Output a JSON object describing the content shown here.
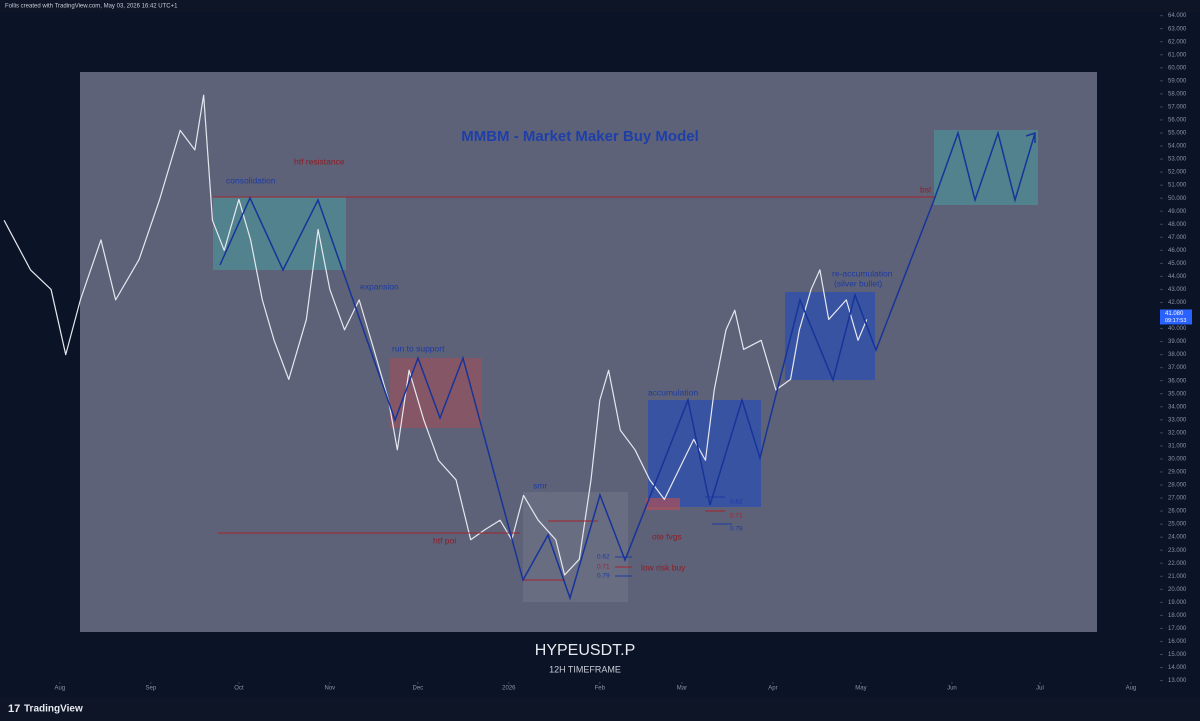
{
  "header": {
    "text": "Follis created with TradingView.com, May 03, 2026 16:42 UTC+1"
  },
  "footer": {
    "brand": "TradingView"
  },
  "chart_data": {
    "type": "line",
    "title": "MMBM - Market Maker Buy Model",
    "symbol": "HYPEUSDT.P",
    "timeframe": "12H TIMEFRAME",
    "color": "#e6e8ef",
    "x": [
      -19,
      -10,
      -3,
      2,
      7,
      14,
      19,
      27,
      34,
      41,
      46,
      49,
      52,
      56,
      61,
      65,
      69,
      73,
      78,
      84,
      88,
      92,
      97,
      102,
      107,
      112,
      115,
      119,
      124,
      129,
      135,
      140,
      145,
      150,
      154,
      158,
      163,
      169,
      172,
      177,
      181,
      184,
      187,
      191,
      196,
      201,
      206,
      211,
      216,
      220,
      223,
      227,
      230,
      233,
      239,
      244,
      249,
      252,
      256,
      259,
      262,
      268,
      272,
      275
    ],
    "values": [
      48.3,
      44.5,
      43,
      38,
      42.2,
      46.8,
      42.2,
      45.3,
      49.9,
      55.2,
      53.7,
      57.9,
      48.3,
      46,
      49.9,
      46.8,
      42.2,
      39.1,
      36.1,
      40.7,
      47.6,
      43,
      39.9,
      42.2,
      38.4,
      34.5,
      30.7,
      36.8,
      33,
      29.9,
      28.4,
      23.8,
      24.6,
      25.3,
      23.8,
      27.2,
      25.3,
      23.8,
      21.1,
      22.3,
      28.4,
      34.5,
      36.8,
      32.2,
      30.7,
      28.4,
      26.9,
      29.2,
      31.5,
      29.9,
      35.3,
      39.9,
      41.4,
      38.4,
      39.1,
      35.3,
      36.1,
      39.9,
      43,
      44.5,
      40.7,
      42.2,
      39.1,
      40.7
    ],
    "last_price": {
      "value": 41.08,
      "label": "41.080"
    },
    "countdown": "09:17:53",
    "xlim": [
      -20.4,
      374.9
    ],
    "xticks": [
      {
        "value": 0,
        "label": "Aug"
      },
      {
        "value": 31,
        "label": "Sep"
      },
      {
        "value": 61,
        "label": "Oct"
      },
      {
        "value": 92,
        "label": "Nov"
      },
      {
        "value": 122,
        "label": "Dec"
      },
      {
        "value": 153,
        "label": "2026"
      },
      {
        "value": 184,
        "label": "Feb"
      },
      {
        "value": 212,
        "label": "Mar"
      },
      {
        "value": 243,
        "label": "Apr"
      },
      {
        "value": 273,
        "label": "May"
      },
      {
        "value": 304,
        "label": "Jun"
      },
      {
        "value": 334,
        "label": "Jul"
      },
      {
        "value": 365,
        "label": "Aug"
      }
    ],
    "ylim": [
      12.2,
      65.2
    ],
    "yticks": [
      {
        "value": 13,
        "label": "13.000"
      },
      {
        "value": 14,
        "label": "14.000"
      },
      {
        "value": 15,
        "label": "15.000"
      },
      {
        "value": 16,
        "label": "16.000"
      },
      {
        "value": 17,
        "label": "17.000"
      },
      {
        "value": 18,
        "label": "18.000"
      },
      {
        "value": 19,
        "label": "19.000"
      },
      {
        "value": 20,
        "label": "20.000"
      },
      {
        "value": 21,
        "label": "21.000"
      },
      {
        "value": 22,
        "label": "22.000"
      },
      {
        "value": 23,
        "label": "23.000"
      },
      {
        "value": 24,
        "label": "24.000"
      },
      {
        "value": 25,
        "label": "25.000"
      },
      {
        "value": 26,
        "label": "26.000"
      },
      {
        "value": 27,
        "label": "27.000"
      },
      {
        "value": 28,
        "label": "28.000"
      },
      {
        "value": 29,
        "label": "29.000"
      },
      {
        "value": 30,
        "label": "30.000"
      },
      {
        "value": 31,
        "label": "31.000"
      },
      {
        "value": 32,
        "label": "32.000"
      },
      {
        "value": 33,
        "label": "33.000"
      },
      {
        "value": 34,
        "label": "34.000"
      },
      {
        "value": 35,
        "label": "35.000"
      },
      {
        "value": 36,
        "label": "36.000"
      },
      {
        "value": 37,
        "label": "37.000"
      },
      {
        "value": 38,
        "label": "38.000"
      },
      {
        "value": 39,
        "label": "39.000"
      },
      {
        "value": 40,
        "label": "40.000"
      },
      {
        "value": 41,
        "label": "41.000"
      },
      {
        "value": 42,
        "label": "42.000"
      },
      {
        "value": 43,
        "label": "43.000"
      },
      {
        "value": 44,
        "label": "44.000"
      },
      {
        "value": 45,
        "label": "45.000"
      },
      {
        "value": 46,
        "label": "46.000"
      },
      {
        "value": 47,
        "label": "47.000"
      },
      {
        "value": 48,
        "label": "48.000"
      },
      {
        "value": 49,
        "label": "49.000"
      },
      {
        "value": 50,
        "label": "50.000"
      },
      {
        "value": 51,
        "label": "51.000"
      },
      {
        "value": 52,
        "label": "52.000"
      },
      {
        "value": 53,
        "label": "53.000"
      },
      {
        "value": 54,
        "label": "54.000"
      },
      {
        "value": 55,
        "label": "55.000"
      },
      {
        "value": 56,
        "label": "56.000"
      },
      {
        "value": 57,
        "label": "57.000"
      },
      {
        "value": 58,
        "label": "58.000"
      },
      {
        "value": 59,
        "label": "59.000"
      },
      {
        "value": 60,
        "label": "60.000"
      },
      {
        "value": 61,
        "label": "61.000"
      },
      {
        "value": 62,
        "label": "62.000"
      },
      {
        "value": 63,
        "label": "63.000"
      },
      {
        "value": 64,
        "label": "64.000"
      }
    ],
    "annotations": [
      "consolidation",
      "htf resistance",
      "expansion",
      "run to support",
      "smr",
      "htf poi",
      "low risk buy",
      "accumulation",
      "ote fvgs",
      "re-accumulation",
      "(silver bullet)",
      "bsl"
    ],
    "fib_levels": [
      "0.62",
      "0.71",
      "0.79",
      "0.62",
      "0.71",
      "0.79"
    ]
  }
}
